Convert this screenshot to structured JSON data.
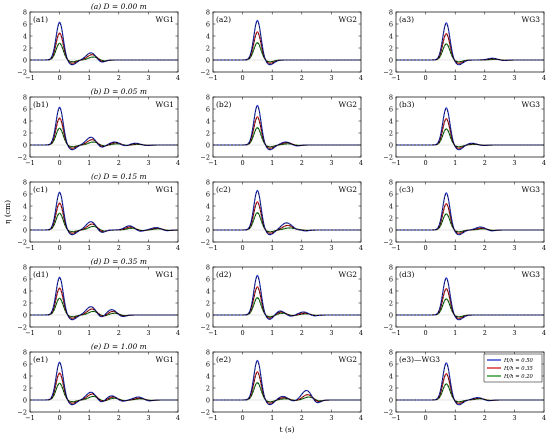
{
  "figure": {
    "xlabel": "t (s)",
    "ylabel": "η (cm)",
    "xticks": [
      "−1",
      "0",
      "1",
      "2",
      "3",
      "4"
    ],
    "yticks": [
      "−2",
      "0",
      "2",
      "4",
      "6",
      "8"
    ]
  },
  "rows": [
    {
      "title": "(a) D = 0.00 m",
      "panels": [
        {
          "label": "(a1)",
          "gauge": "WG1"
        },
        {
          "label": "(a2)",
          "gauge": "WG2"
        },
        {
          "label": "(a3)",
          "gauge": "WG3"
        }
      ]
    },
    {
      "title": "(b) D = 0.05 m",
      "panels": [
        {
          "label": "(b1)",
          "gauge": "WG1"
        },
        {
          "label": "(b2)",
          "gauge": "WG2"
        },
        {
          "label": "(b3)",
          "gauge": "WG3"
        }
      ]
    },
    {
      "title": "(c) D = 0.15 m",
      "panels": [
        {
          "label": "(c1)",
          "gauge": "WG1"
        },
        {
          "label": "(c2)",
          "gauge": "WG2"
        },
        {
          "label": "(c3)",
          "gauge": "WG3"
        }
      ]
    },
    {
      "title": "(d) D = 0.35 m",
      "panels": [
        {
          "label": "(d1)",
          "gauge": "WG1"
        },
        {
          "label": "(d2)",
          "gauge": "WG2"
        },
        {
          "label": "(d3)",
          "gauge": "WG3"
        }
      ]
    },
    {
      "title": "(e) D = 1.00 m",
      "panels": [
        {
          "label": "(e1)",
          "gauge": "WG1"
        },
        {
          "label": "(e2)",
          "gauge": "WG2"
        },
        {
          "label": "(e3)—WG3",
          "gauge": ""
        }
      ]
    }
  ],
  "legend": {
    "entries": [
      {
        "label": "H/h = 0.50",
        "color": "#1f2fc8"
      },
      {
        "label": "H/h = 0.35",
        "color": "#d01818"
      },
      {
        "label": "H/h = 0.20",
        "color": "#1a8a1a"
      }
    ]
  },
  "chart_data": {
    "type": "line",
    "xlim": [
      -1,
      4
    ],
    "ylim": [
      -2,
      8
    ],
    "grid": false,
    "legend_position": "lower-right panel (e3), top-right",
    "series_names": [
      "H/h = 0.50",
      "H/h = 0.35",
      "H/h = 0.20"
    ],
    "series_colors": [
      "#1f2fc8",
      "#d01818",
      "#1a8a1a"
    ],
    "peaks_by_gauge": {
      "WG1": {
        "t_peak": 0.0,
        "amplitudes": [
          6.3,
          4.5,
          2.8
        ]
      },
      "WG2": {
        "t_peak": 0.5,
        "amplitudes": [
          6.6,
          4.7,
          2.9
        ]
      },
      "WG3": {
        "t_peak": 0.7,
        "amplitudes": [
          6.2,
          4.4,
          2.7
        ]
      }
    },
    "secondary_waves": {
      "a1": [
        {
          "t": 1.1,
          "a": [
            1.2,
            0.9,
            0.5
          ]
        }
      ],
      "a2": [],
      "a3": [
        {
          "t": 2.3,
          "a": [
            0.3,
            0.2,
            0.1
          ]
        }
      ],
      "b1": [
        {
          "t": 1.1,
          "a": [
            1.3,
            0.9,
            0.5
          ]
        },
        {
          "t": 1.9,
          "a": [
            0.5,
            0.4,
            0.2
          ]
        },
        {
          "t": 2.6,
          "a": [
            0.3,
            0.2,
            0.1
          ]
        }
      ],
      "b2": [
        {
          "t": 1.5,
          "a": [
            0.5,
            0.4,
            0.2
          ]
        }
      ],
      "b3": [
        {
          "t": 1.6,
          "a": [
            0.3,
            0.2,
            0.1
          ]
        }
      ],
      "c1": [
        {
          "t": 1.1,
          "a": [
            1.4,
            1.0,
            0.6
          ]
        },
        {
          "t": 2.4,
          "a": [
            0.7,
            0.5,
            0.3
          ]
        },
        {
          "t": 3.3,
          "a": [
            0.4,
            0.3,
            0.2
          ]
        }
      ],
      "c2": [
        {
          "t": 1.5,
          "a": [
            1.1,
            0.7,
            0.3
          ]
        },
        {
          "t": 1.8,
          "a": [
            0.5,
            0.3,
            0.2
          ]
        }
      ],
      "c3": [
        {
          "t": 1.9,
          "a": [
            0.5,
            0.3,
            0.2
          ]
        }
      ],
      "d1": [
        {
          "t": 1.1,
          "a": [
            1.4,
            1.0,
            0.6
          ]
        },
        {
          "t": 1.8,
          "a": [
            0.9,
            0.6,
            0.3
          ]
        }
      ],
      "d2": [
        {
          "t": 1.3,
          "a": [
            0.7,
            0.5,
            0.3
          ]
        },
        {
          "t": 2.1,
          "a": [
            0.5,
            0.3,
            0.2
          ]
        }
      ],
      "d3": [],
      "e1": [
        {
          "t": 1.1,
          "a": [
            1.3,
            1.0,
            0.6
          ]
        },
        {
          "t": 1.8,
          "a": [
            0.7,
            0.5,
            0.3
          ]
        },
        {
          "t": 2.7,
          "a": [
            0.5,
            0.3,
            0.2
          ]
        }
      ],
      "e2": [
        {
          "t": 1.4,
          "a": [
            0.6,
            0.4,
            0.2
          ]
        },
        {
          "t": 2.2,
          "a": [
            1.6,
            0.9,
            0.5
          ]
        }
      ],
      "e3": [
        {
          "t": 1.8,
          "a": [
            0.4,
            0.3,
            0.2
          ]
        }
      ]
    },
    "trough_depth": [
      0.8,
      0.55,
      0.3
    ]
  }
}
